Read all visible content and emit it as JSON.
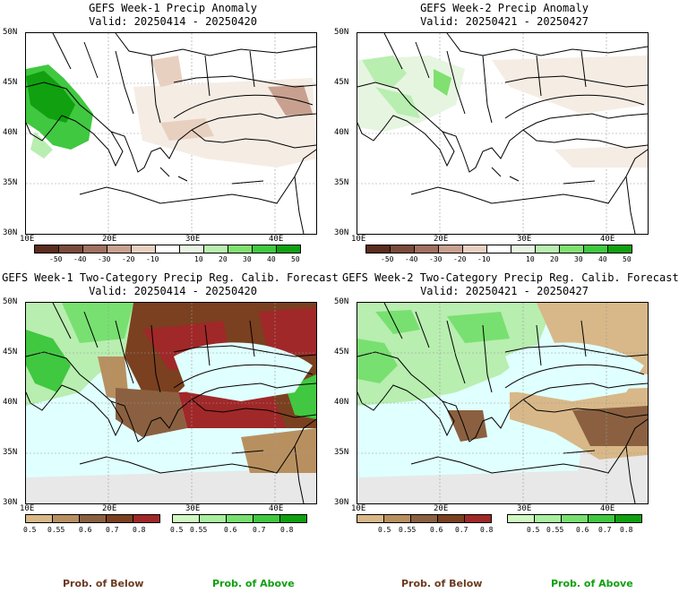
{
  "panels": [
    {
      "title": "GEFS Week-1 Precip Anomaly",
      "valid": "Valid: 20250414 - 20250420"
    },
    {
      "title": "GEFS Week-2 Precip Anomaly",
      "valid": "Valid: 20250421 - 20250427"
    },
    {
      "title": "GEFS Week-1 Two-Category Precip Reg. Calib. Forecast",
      "valid": "Valid: 20250414 - 20250420"
    },
    {
      "title": "GEFS Week-2 Two-Category Precip Reg. Calib. Forecast",
      "valid": "Valid: 20250421 - 20250427"
    }
  ],
  "map": {
    "lat_labels": [
      "50N",
      "45N",
      "40N",
      "35N",
      "30N"
    ],
    "lon_labels": [
      "10E",
      "20E",
      "30E",
      "40E"
    ],
    "extent": {
      "lon": [
        10,
        45
      ],
      "lat": [
        30,
        50
      ]
    }
  },
  "anomaly_colorbar": {
    "labels": [
      "-50",
      "-40",
      "-30",
      "-20",
      "-10",
      "10",
      "20",
      "30",
      "40",
      "50"
    ],
    "colors": [
      "#5a2d1e",
      "#7a4a3a",
      "#a07060",
      "#c8a090",
      "#e8d0c0",
      "#f5ece4",
      "#ffffff",
      "#e6f5e0",
      "#b8eeb0",
      "#80e070",
      "#40c840",
      "#10a010"
    ]
  },
  "below_colorbar": {
    "labels": [
      "0.5",
      "0.55",
      "0.6",
      "0.7",
      "0.8"
    ],
    "colors": [
      "#d8b888",
      "#b89060",
      "#8a6040",
      "#7a4020",
      "#a02828"
    ]
  },
  "above_colorbar": {
    "labels": [
      "0.5",
      "0.55",
      "0.6",
      "0.7",
      "0.8"
    ],
    "colors": [
      "#d0f8c0",
      "#a8f0a0",
      "#78e070",
      "#40c840",
      "#10a010"
    ]
  },
  "legend": {
    "below": "Prob. of Below",
    "above": "Prob. of Above"
  },
  "colors": {
    "sea": "#e0ffff",
    "below_text": "#6b3a20",
    "above_text": "#10a010",
    "nodata": "#e8e8e8"
  }
}
